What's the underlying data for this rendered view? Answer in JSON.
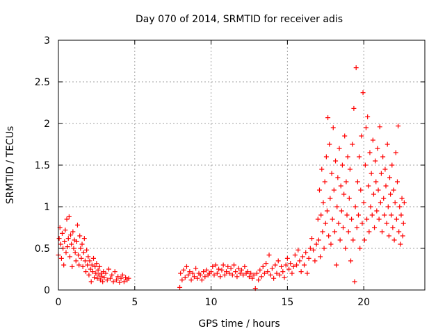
{
  "chart_data": {
    "type": "scatter",
    "title": "Day 070 of 2014, SRMTID for receiver adis",
    "xlabel": "GPS time / hours",
    "ylabel": "SRMTID / TECUs",
    "xlim": [
      0,
      24
    ],
    "ylim": [
      0,
      3
    ],
    "xticks": [
      0,
      5,
      10,
      15,
      20
    ],
    "yticks": [
      0,
      0.5,
      1,
      1.5,
      2,
      2.5,
      3
    ],
    "xtick_labels": [
      "0",
      "5",
      "10",
      "15",
      "20"
    ],
    "ytick_labels": [
      "0",
      "0.5",
      "1",
      "1.5",
      "2",
      "2.5",
      "3"
    ],
    "grid": true,
    "marker": "+",
    "series": [
      {
        "name": "SRMTID",
        "color": "#ff0000",
        "points": [
          [
            0.0,
            0.42
          ],
          [
            0.05,
            0.62
          ],
          [
            0.1,
            0.75
          ],
          [
            0.15,
            0.55
          ],
          [
            0.2,
            0.38
          ],
          [
            0.25,
            0.68
          ],
          [
            0.3,
            0.5
          ],
          [
            0.35,
            0.3
          ],
          [
            0.4,
            0.58
          ],
          [
            0.45,
            0.72
          ],
          [
            0.5,
            0.45
          ],
          [
            0.55,
            0.85
          ],
          [
            0.6,
            0.52
          ],
          [
            0.65,
            0.62
          ],
          [
            0.7,
            0.88
          ],
          [
            0.75,
            0.4
          ],
          [
            0.8,
            0.66
          ],
          [
            0.85,
            0.55
          ],
          [
            0.9,
            0.28
          ],
          [
            0.95,
            0.7
          ],
          [
            1.0,
            0.5
          ],
          [
            1.05,
            0.6
          ],
          [
            1.1,
            0.45
          ],
          [
            1.15,
            0.35
          ],
          [
            1.2,
            0.58
          ],
          [
            1.25,
            0.78
          ],
          [
            1.3,
            0.42
          ],
          [
            1.35,
            0.3
          ],
          [
            1.4,
            0.65
          ],
          [
            1.45,
            0.5
          ],
          [
            1.5,
            0.38
          ],
          [
            1.55,
            0.55
          ],
          [
            1.6,
            0.28
          ],
          [
            1.65,
            0.45
          ],
          [
            1.7,
            0.62
          ],
          [
            1.75,
            0.35
          ],
          [
            1.8,
            0.22
          ],
          [
            1.85,
            0.48
          ],
          [
            1.9,
            0.3
          ],
          [
            1.95,
            0.4
          ],
          [
            2.0,
            0.18
          ],
          [
            2.05,
            0.35
          ],
          [
            2.1,
            0.25
          ],
          [
            2.15,
            0.1
          ],
          [
            2.2,
            0.3
          ],
          [
            2.25,
            0.22
          ],
          [
            2.3,
            0.38
          ],
          [
            2.35,
            0.15
          ],
          [
            2.4,
            0.28
          ],
          [
            2.45,
            0.2
          ],
          [
            2.5,
            0.32
          ],
          [
            2.55,
            0.14
          ],
          [
            2.6,
            0.24
          ],
          [
            2.65,
            0.18
          ],
          [
            2.7,
            0.28
          ],
          [
            2.75,
            0.12
          ],
          [
            2.8,
            0.2
          ],
          [
            2.85,
            0.16
          ],
          [
            2.9,
            0.1
          ],
          [
            2.95,
            0.22
          ],
          [
            3.0,
            0.15
          ],
          [
            3.1,
            0.2
          ],
          [
            3.2,
            0.12
          ],
          [
            3.3,
            0.25
          ],
          [
            3.4,
            0.14
          ],
          [
            3.5,
            0.18
          ],
          [
            3.6,
            0.1
          ],
          [
            3.7,
            0.22
          ],
          [
            3.8,
            0.12
          ],
          [
            3.9,
            0.16
          ],
          [
            4.0,
            0.09
          ],
          [
            4.1,
            0.14
          ],
          [
            4.2,
            0.18
          ],
          [
            4.3,
            0.1
          ],
          [
            4.4,
            0.15
          ],
          [
            4.5,
            0.12
          ],
          [
            4.6,
            0.14
          ],
          [
            7.95,
            0.03
          ],
          [
            8.0,
            0.2
          ],
          [
            8.1,
            0.12
          ],
          [
            8.2,
            0.24
          ],
          [
            8.3,
            0.15
          ],
          [
            8.4,
            0.28
          ],
          [
            8.5,
            0.18
          ],
          [
            8.6,
            0.22
          ],
          [
            8.7,
            0.12
          ],
          [
            8.8,
            0.2
          ],
          [
            8.9,
            0.16
          ],
          [
            9.0,
            0.26
          ],
          [
            9.1,
            0.14
          ],
          [
            9.2,
            0.2
          ],
          [
            9.3,
            0.18
          ],
          [
            9.4,
            0.12
          ],
          [
            9.5,
            0.22
          ],
          [
            9.6,
            0.16
          ],
          [
            9.7,
            0.24
          ],
          [
            9.8,
            0.18
          ],
          [
            9.9,
            0.2
          ],
          [
            10.0,
            0.22
          ],
          [
            10.1,
            0.28
          ],
          [
            10.2,
            0.18
          ],
          [
            10.3,
            0.3
          ],
          [
            10.4,
            0.2
          ],
          [
            10.5,
            0.25
          ],
          [
            10.6,
            0.16
          ],
          [
            10.7,
            0.24
          ],
          [
            10.8,
            0.3
          ],
          [
            10.9,
            0.18
          ],
          [
            11.0,
            0.22
          ],
          [
            11.1,
            0.28
          ],
          [
            11.2,
            0.2
          ],
          [
            11.3,
            0.26
          ],
          [
            11.4,
            0.18
          ],
          [
            11.5,
            0.3
          ],
          [
            11.6,
            0.22
          ],
          [
            11.7,
            0.16
          ],
          [
            11.8,
            0.26
          ],
          [
            11.9,
            0.2
          ],
          [
            12.0,
            0.24
          ],
          [
            12.1,
            0.18
          ],
          [
            12.2,
            0.28
          ],
          [
            12.3,
            0.2
          ],
          [
            12.4,
            0.22
          ],
          [
            12.5,
            0.16
          ],
          [
            12.6,
            0.2
          ],
          [
            12.7,
            0.14
          ],
          [
            12.8,
            0.18
          ],
          [
            12.9,
            0.02
          ],
          [
            13.0,
            0.2
          ],
          [
            13.1,
            0.12
          ],
          [
            13.2,
            0.24
          ],
          [
            13.3,
            0.16
          ],
          [
            13.4,
            0.28
          ],
          [
            13.5,
            0.2
          ],
          [
            13.6,
            0.32
          ],
          [
            13.7,
            0.22
          ],
          [
            13.8,
            0.42
          ],
          [
            13.9,
            0.18
          ],
          [
            14.0,
            0.26
          ],
          [
            14.1,
            0.14
          ],
          [
            14.2,
            0.3
          ],
          [
            14.3,
            0.2
          ],
          [
            14.4,
            0.35
          ],
          [
            14.5,
            0.18
          ],
          [
            14.6,
            0.28
          ],
          [
            14.7,
            0.22
          ],
          [
            14.8,
            0.15
          ],
          [
            14.9,
            0.3
          ],
          [
            15.0,
            0.38
          ],
          [
            15.1,
            0.25
          ],
          [
            15.2,
            0.32
          ],
          [
            15.3,
            0.2
          ],
          [
            15.4,
            0.28
          ],
          [
            15.5,
            0.42
          ],
          [
            15.6,
            0.3
          ],
          [
            15.7,
            0.48
          ],
          [
            15.8,
            0.35
          ],
          [
            15.9,
            0.22
          ],
          [
            16.0,
            0.4
          ],
          [
            16.1,
            0.3
          ],
          [
            16.2,
            0.45
          ],
          [
            16.3,
            0.2
          ],
          [
            16.4,
            0.38
          ],
          [
            16.5,
            0.5
          ],
          [
            16.6,
            0.62
          ],
          [
            16.7,
            0.48
          ],
          [
            16.8,
            0.35
          ],
          [
            16.9,
            0.55
          ],
          [
            17.0,
            0.85
          ],
          [
            17.05,
            0.6
          ],
          [
            17.1,
            1.2
          ],
          [
            17.15,
            0.4
          ],
          [
            17.2,
            0.9
          ],
          [
            17.25,
            1.45
          ],
          [
            17.3,
            0.7
          ],
          [
            17.35,
            1.05
          ],
          [
            17.4,
            0.5
          ],
          [
            17.45,
            1.3
          ],
          [
            17.5,
            0.8
          ],
          [
            17.55,
            1.6
          ],
          [
            17.6,
            0.95
          ],
          [
            17.65,
            2.07
          ],
          [
            17.7,
            0.65
          ],
          [
            17.75,
            1.75
          ],
          [
            17.8,
            1.1
          ],
          [
            17.85,
            0.55
          ],
          [
            17.9,
            1.4
          ],
          [
            17.95,
            0.85
          ],
          [
            18.0,
            1.95
          ],
          [
            18.05,
            1.2
          ],
          [
            18.1,
            0.7
          ],
          [
            18.15,
            1.55
          ],
          [
            18.2,
            0.3
          ],
          [
            18.25,
            1.0
          ],
          [
            18.3,
            1.35
          ],
          [
            18.35,
            0.8
          ],
          [
            18.4,
            1.7
          ],
          [
            18.45,
            0.6
          ],
          [
            18.5,
            1.25
          ],
          [
            18.55,
            0.95
          ],
          [
            18.6,
            1.5
          ],
          [
            18.65,
            0.75
          ],
          [
            18.7,
            1.15
          ],
          [
            18.75,
            1.85
          ],
          [
            18.8,
            0.5
          ],
          [
            18.85,
            1.3
          ],
          [
            18.9,
            0.9
          ],
          [
            18.95,
            1.6
          ],
          [
            19.0,
            0.7
          ],
          [
            19.05,
            1.1
          ],
          [
            19.1,
            1.45
          ],
          [
            19.15,
            0.35
          ],
          [
            19.2,
            0.85
          ],
          [
            19.25,
            1.75
          ],
          [
            19.3,
            0.6
          ],
          [
            19.35,
            2.18
          ],
          [
            19.4,
            0.1
          ],
          [
            19.45,
            1.0
          ],
          [
            19.5,
            2.67
          ],
          [
            19.55,
            0.75
          ],
          [
            19.6,
            1.3
          ],
          [
            19.65,
            0.9
          ],
          [
            19.7,
            1.6
          ],
          [
            19.75,
            0.5
          ],
          [
            19.8,
            1.2
          ],
          [
            19.85,
            1.85
          ],
          [
            19.9,
            0.8
          ],
          [
            19.95,
            2.37
          ],
          [
            20.0,
            1.05
          ],
          [
            20.05,
            0.6
          ],
          [
            20.1,
            1.5
          ],
          [
            20.15,
            1.95
          ],
          [
            20.2,
            0.85
          ],
          [
            20.25,
            2.08
          ],
          [
            20.3,
            1.25
          ],
          [
            20.35,
            0.7
          ],
          [
            20.4,
            1.65
          ],
          [
            20.45,
            1.0
          ],
          [
            20.5,
            1.4
          ],
          [
            20.55,
            0.9
          ],
          [
            20.6,
            1.8
          ],
          [
            20.65,
            1.15
          ],
          [
            20.7,
            0.75
          ],
          [
            20.75,
            1.55
          ],
          [
            20.8,
            1.3
          ],
          [
            20.85,
            0.95
          ],
          [
            20.9,
            1.7
          ],
          [
            20.95,
            1.2
          ],
          [
            21.0,
            0.85
          ],
          [
            21.05,
            1.96
          ],
          [
            21.1,
            1.05
          ],
          [
            21.15,
            1.4
          ],
          [
            21.2,
            0.7
          ],
          [
            21.25,
            1.6
          ],
          [
            21.3,
            1.1
          ],
          [
            21.35,
            0.9
          ],
          [
            21.4,
            1.45
          ],
          [
            21.45,
            1.25
          ],
          [
            21.5,
            0.8
          ],
          [
            21.55,
            1.75
          ],
          [
            21.6,
            1.0
          ],
          [
            21.65,
            0.65
          ],
          [
            21.7,
            1.35
          ],
          [
            21.75,
            1.15
          ],
          [
            21.8,
            0.9
          ],
          [
            21.85,
            1.5
          ],
          [
            21.9,
            0.75
          ],
          [
            21.95,
            1.2
          ],
          [
            22.0,
            0.6
          ],
          [
            22.05,
            1.05
          ],
          [
            22.1,
            1.65
          ],
          [
            22.15,
            0.85
          ],
          [
            22.2,
            1.3
          ],
          [
            22.25,
            1.97
          ],
          [
            22.3,
            0.7
          ],
          [
            22.35,
            1.0
          ],
          [
            22.4,
            0.55
          ],
          [
            22.45,
            0.9
          ],
          [
            22.5,
            1.1
          ],
          [
            22.55,
            0.65
          ],
          [
            22.6,
            0.8
          ],
          [
            22.65,
            1.05
          ]
        ]
      }
    ]
  }
}
